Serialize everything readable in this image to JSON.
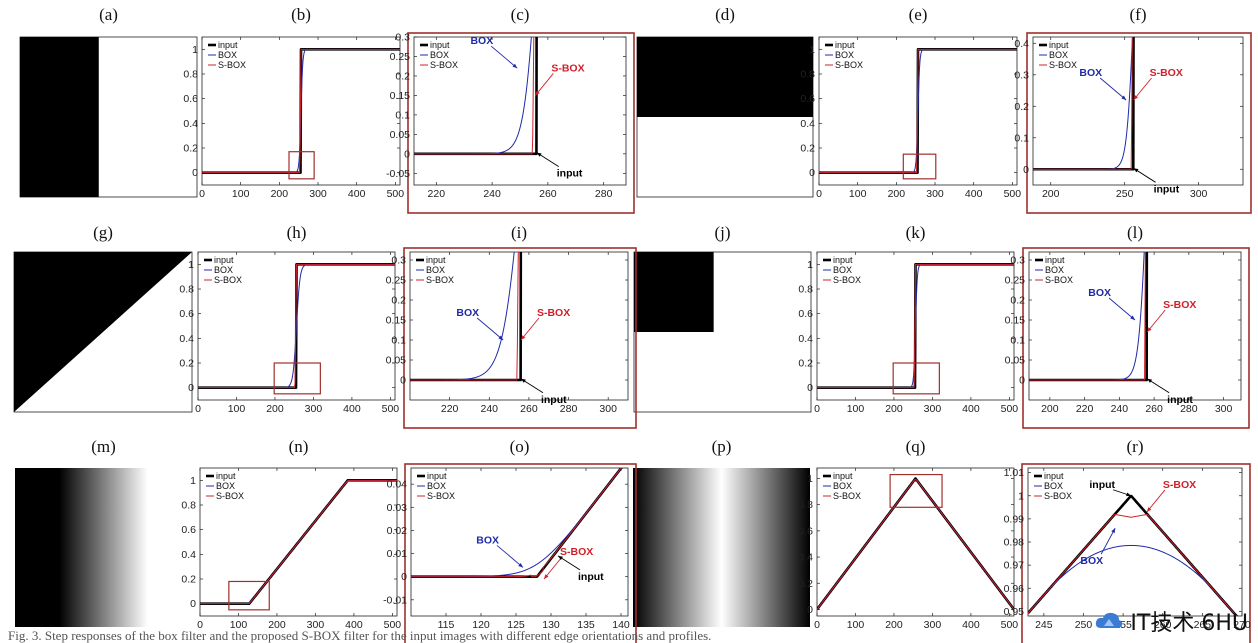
{
  "figure": {
    "bottom_caption": "Fig. 3. Step responses of the box filter and the proposed S-BOX filter for the input images with different edge orientations and profiles.",
    "watermark_text": "IT技术 6HU",
    "colors": {
      "input": "#000000",
      "box": "#1f2aa8",
      "sbox": "#d0202a",
      "inset_frame": "#a0302c",
      "zoom_box": "#a0302c"
    },
    "legend_labels": [
      "input",
      "BOX",
      "S-BOX"
    ],
    "annotations": {
      "box": "BOX",
      "sbox": "S-BOX",
      "input": "input"
    },
    "images": [
      {
        "caption": "(a)",
        "kind": "vertical_edge"
      },
      {
        "caption": "(d)",
        "kind": "horizontal_edge"
      },
      {
        "caption": "(g)",
        "kind": "diagonal_edge"
      },
      {
        "caption": "(j)",
        "kind": "corner"
      },
      {
        "caption": "(m)",
        "kind": "ramp"
      },
      {
        "caption": "(p)",
        "kind": "ridge"
      }
    ]
  },
  "chart_data": [
    {
      "panel": "(b)",
      "type": "line",
      "profile": "step",
      "step": 256,
      "blur": 5,
      "sharp": 3,
      "xlim": [
        0,
        512
      ],
      "ylim": [
        -0.1,
        1.1
      ],
      "xticks": [
        0,
        100,
        200,
        300,
        400,
        500
      ],
      "yticks": [
        0,
        0.2,
        0.4,
        0.6,
        0.8,
        1
      ],
      "zoom_box": {
        "x": [
          225,
          290
        ],
        "y": [
          -0.05,
          0.17
        ]
      },
      "series": [
        {
          "name": "input"
        },
        {
          "name": "BOX"
        },
        {
          "name": "S-BOX"
        }
      ]
    },
    {
      "panel": "(c)",
      "type": "line",
      "profile": "step",
      "step": 256,
      "blur": 5,
      "sharp": 1.5,
      "xlim": [
        212,
        288
      ],
      "ylim": [
        -0.08,
        0.3
      ],
      "xticks": [
        220,
        240,
        260,
        280
      ],
      "yticks": [
        -0.05,
        0,
        0.05,
        0.1,
        0.15,
        0.2,
        0.25,
        0.3
      ],
      "series": [
        {
          "name": "input"
        },
        {
          "name": "BOX"
        },
        {
          "name": "S-BOX"
        }
      ],
      "annotations": [
        {
          "label": "BOX",
          "at": [
            249,
            0.22
          ]
        },
        {
          "label": "S-BOX",
          "at": [
            255.5,
            0.15
          ]
        },
        {
          "label": "input",
          "at": [
            256,
            0.003
          ]
        }
      ]
    },
    {
      "panel": "(e)",
      "type": "line",
      "profile": "step",
      "step": 256,
      "blur": 5,
      "sharp": 3,
      "xlim": [
        0,
        512
      ],
      "ylim": [
        -0.1,
        1.1
      ],
      "xticks": [
        0,
        100,
        200,
        300,
        400,
        500
      ],
      "yticks": [
        0,
        0.2,
        0.4,
        0.6,
        0.8,
        1
      ],
      "zoom_box": {
        "x": [
          218,
          302
        ],
        "y": [
          -0.05,
          0.15
        ]
      },
      "series": [
        {
          "name": "input"
        },
        {
          "name": "BOX"
        },
        {
          "name": "S-BOX"
        }
      ]
    },
    {
      "panel": "(f)",
      "type": "line",
      "profile": "step",
      "step": 256,
      "blur": 5,
      "sharp": 1.5,
      "xlim": [
        188,
        330
      ],
      "ylim": [
        -0.05,
        0.42
      ],
      "xticks": [
        200,
        250,
        300
      ],
      "yticks": [
        0,
        0.1,
        0.2,
        0.3,
        0.4
      ],
      "series": [
        {
          "name": "input"
        },
        {
          "name": "BOX"
        },
        {
          "name": "S-BOX"
        }
      ],
      "annotations": [
        {
          "label": "BOX",
          "at": [
            251,
            0.22
          ]
        },
        {
          "label": "S-BOX",
          "at": [
            256,
            0.22
          ]
        },
        {
          "label": "input",
          "at": [
            256,
            0.003
          ]
        }
      ]
    },
    {
      "panel": "(h)",
      "type": "line",
      "profile": "step",
      "step": 256,
      "blur": 10,
      "sharp": 4,
      "xlim": [
        0,
        512
      ],
      "ylim": [
        -0.1,
        1.1
      ],
      "xticks": [
        0,
        100,
        200,
        300,
        400,
        500
      ],
      "yticks": [
        0,
        0.2,
        0.4,
        0.6,
        0.8,
        1
      ],
      "zoom_box": {
        "x": [
          198,
          318
        ],
        "y": [
          -0.05,
          0.2
        ]
      },
      "series": [
        {
          "name": "input"
        },
        {
          "name": "BOX"
        },
        {
          "name": "S-BOX"
        }
      ]
    },
    {
      "panel": "(i)",
      "type": "line",
      "profile": "step",
      "step": 256,
      "blur": 10,
      "sharp": 2,
      "xlim": [
        200,
        310
      ],
      "ylim": [
        -0.05,
        0.32
      ],
      "xticks": [
        220,
        240,
        260,
        280,
        300
      ],
      "yticks": [
        0,
        0.05,
        0.1,
        0.15,
        0.2,
        0.25,
        0.3
      ],
      "series": [
        {
          "name": "input"
        },
        {
          "name": "BOX"
        },
        {
          "name": "S-BOX"
        }
      ],
      "annotations": [
        {
          "label": "BOX",
          "at": [
            247,
            0.1
          ]
        },
        {
          "label": "S-BOX",
          "at": [
            256,
            0.1
          ]
        },
        {
          "label": "input",
          "at": [
            256,
            0.003
          ]
        }
      ]
    },
    {
      "panel": "(k)",
      "type": "line",
      "profile": "step",
      "step": 256,
      "blur": 5,
      "sharp": 3,
      "xlim": [
        0,
        512
      ],
      "ylim": [
        -0.1,
        1.1
      ],
      "xticks": [
        0,
        100,
        200,
        300,
        400,
        500
      ],
      "yticks": [
        0,
        0.2,
        0.4,
        0.6,
        0.8,
        1
      ],
      "zoom_box": {
        "x": [
          198,
          318
        ],
        "y": [
          -0.05,
          0.2
        ]
      },
      "series": [
        {
          "name": "input"
        },
        {
          "name": "BOX"
        },
        {
          "name": "S-BOX"
        }
      ]
    },
    {
      "panel": "(l)",
      "type": "line",
      "profile": "step",
      "step": 256,
      "blur": 5,
      "sharp": 1.5,
      "xlim": [
        188,
        310
      ],
      "ylim": [
        -0.05,
        0.32
      ],
      "xticks": [
        200,
        220,
        240,
        260,
        280,
        300
      ],
      "yticks": [
        0,
        0.05,
        0.1,
        0.15,
        0.2,
        0.25,
        0.3
      ],
      "series": [
        {
          "name": "input"
        },
        {
          "name": "BOX"
        },
        {
          "name": "S-BOX"
        }
      ],
      "annotations": [
        {
          "label": "BOX",
          "at": [
            249,
            0.15
          ]
        },
        {
          "label": "S-BOX",
          "at": [
            256,
            0.12
          ]
        },
        {
          "label": "input",
          "at": [
            256,
            0.003
          ]
        }
      ]
    },
    {
      "panel": "(n)",
      "type": "line",
      "profile": "ramp",
      "ramp_start": 128,
      "ramp_end": 384,
      "corner_radius": 10,
      "xlim": [
        0,
        512
      ],
      "ylim": [
        -0.1,
        1.1
      ],
      "xticks": [
        0,
        100,
        200,
        300,
        400,
        500
      ],
      "yticks": [
        0,
        0.2,
        0.4,
        0.6,
        0.8,
        1
      ],
      "zoom_box": {
        "x": [
          75,
          180
        ],
        "y": [
          -0.05,
          0.18
        ]
      },
      "series": [
        {
          "name": "input"
        },
        {
          "name": "BOX"
        },
        {
          "name": "S-BOX"
        }
      ]
    },
    {
      "panel": "(o)",
      "type": "line",
      "profile": "ramp",
      "ramp_start": 128,
      "ramp_end": 384,
      "corner_radius": 6,
      "xlim": [
        110,
        141
      ],
      "ylim": [
        -0.017,
        0.047
      ],
      "xticks": [
        115,
        120,
        125,
        130,
        135,
        140
      ],
      "yticks": [
        -0.01,
        0,
        0.01,
        0.02,
        0.03,
        0.04
      ],
      "series": [
        {
          "name": "input"
        },
        {
          "name": "BOX"
        },
        {
          "name": "S-BOX"
        }
      ],
      "annotations": [
        {
          "label": "BOX",
          "at": [
            126,
            0.004
          ]
        },
        {
          "label": "S-BOX",
          "at": [
            129,
            -0.001
          ]
        },
        {
          "label": "input",
          "at": [
            131,
            0.009
          ]
        }
      ]
    },
    {
      "panel": "(q)",
      "type": "line",
      "profile": "ridge",
      "peak": 256,
      "corner_radius": 10,
      "xlim": [
        0,
        512
      ],
      "ylim": [
        -0.05,
        1.08
      ],
      "xticks": [
        0,
        100,
        200,
        300,
        400,
        500
      ],
      "yticks": [
        0,
        0.2,
        0.4,
        0.6,
        0.8,
        1
      ],
      "zoom_box": {
        "x": [
          190,
          325
        ],
        "y": [
          0.78,
          1.03
        ]
      },
      "series": [
        {
          "name": "input"
        },
        {
          "name": "BOX"
        },
        {
          "name": "S-BOX"
        }
      ]
    },
    {
      "panel": "(r)",
      "type": "line",
      "profile": "ridge",
      "peak": 256,
      "corner_radius": 11,
      "xlim": [
        243,
        270
      ],
      "ylim": [
        0.948,
        1.012
      ],
      "xticks": [
        245,
        250,
        255,
        260,
        265,
        270
      ],
      "yticks": [
        0.95,
        0.96,
        0.97,
        0.98,
        0.99,
        1,
        1.01
      ],
      "series": [
        {
          "name": "input"
        },
        {
          "name": "BOX"
        },
        {
          "name": "S-BOX"
        }
      ],
      "annotations": [
        {
          "label": "input",
          "at": [
            256,
            1.0
          ]
        },
        {
          "label": "S-BOX",
          "at": [
            258,
            0.993
          ]
        },
        {
          "label": "BOX",
          "at": [
            254,
            0.986
          ]
        }
      ]
    }
  ]
}
